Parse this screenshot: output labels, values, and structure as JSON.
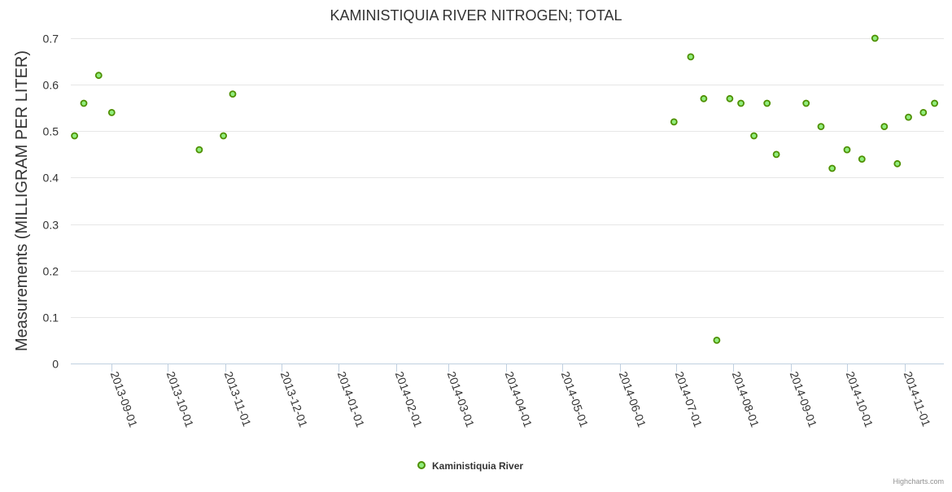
{
  "chart_data": {
    "type": "scatter",
    "title": "KAMINISTIQUIA RIVER NITROGEN; TOTAL",
    "ylabel": "Measurements (MILLIGRAM PER LITER)",
    "xlabel": "",
    "ylim": [
      0,
      0.7
    ],
    "yticks": [
      "0",
      "0.1",
      "0.2",
      "0.3",
      "0.4",
      "0.5",
      "0.6",
      "0.7"
    ],
    "xticks": [
      "2013-09-01",
      "2013-10-01",
      "2013-11-01",
      "2013-12-01",
      "2014-01-01",
      "2014-02-01",
      "2014-03-01",
      "2014-04-01",
      "2014-05-01",
      "2014-06-01",
      "2014-07-01",
      "2014-08-01",
      "2014-09-01",
      "2014-10-01",
      "2014-11-01"
    ],
    "xlim": [
      "2013-08-10",
      "2014-11-22"
    ],
    "grid": true,
    "legend_position": "bottom-center",
    "series": [
      {
        "name": "Kaministiquia River",
        "color": "#90ed7d",
        "x": [
          "2013-08-12",
          "2013-08-17",
          "2013-08-25",
          "2013-09-01",
          "2013-10-18",
          "2013-10-31",
          "2013-11-05",
          "2014-06-30",
          "2014-07-09",
          "2014-07-16",
          "2014-07-23",
          "2014-07-30",
          "2014-08-05",
          "2014-08-12",
          "2014-08-19",
          "2014-08-24",
          "2014-09-09",
          "2014-09-17",
          "2014-09-23",
          "2014-10-01",
          "2014-10-09",
          "2014-10-16",
          "2014-10-21",
          "2014-10-28",
          "2014-11-03",
          "2014-11-11",
          "2014-11-17"
        ],
        "y": [
          0.49,
          0.56,
          0.62,
          0.54,
          0.46,
          0.49,
          0.58,
          0.52,
          0.66,
          0.57,
          0.05,
          0.57,
          0.56,
          0.49,
          0.56,
          0.45,
          0.56,
          0.51,
          0.42,
          0.46,
          0.44,
          0.7,
          0.51,
          0.43,
          0.53,
          0.54,
          0.56
        ]
      }
    ]
  },
  "legend": {
    "label": "Kaministiquia River"
  },
  "credits": "Highcharts.com"
}
